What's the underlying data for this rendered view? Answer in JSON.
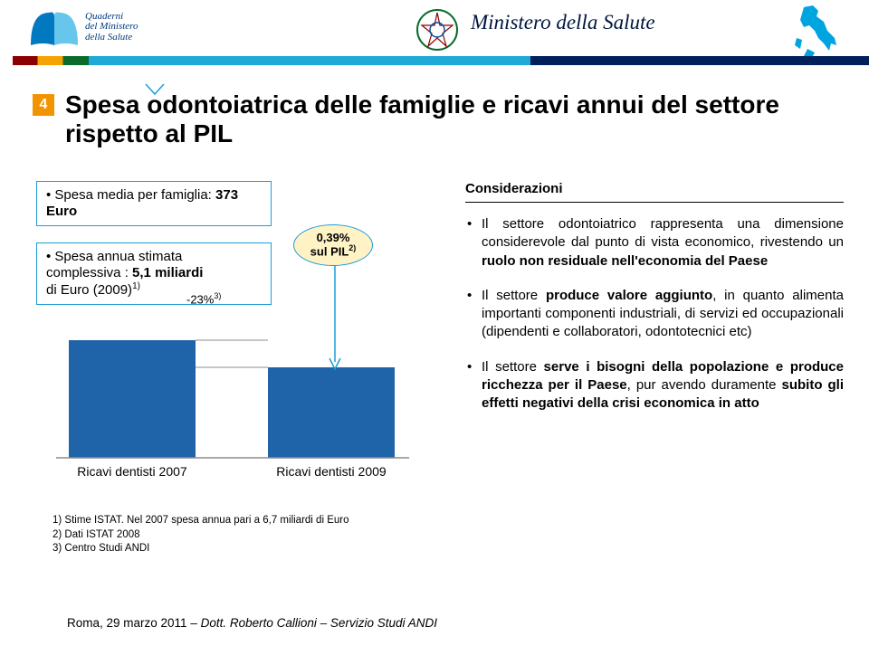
{
  "header": {
    "logo_left_lines": [
      "Quaderni",
      "del Ministero",
      "della Salute"
    ],
    "brand_text": "Ministero della Salute",
    "italy_fill": "#00a5e0"
  },
  "title": {
    "badge": "4",
    "text": "Spesa odontoiatrica delle famiglie e ricavi annui del settore rispetto al PIL"
  },
  "facts": {
    "box1_prefix": "• Spesa media per famiglia: ",
    "box1_value": "373 Euro",
    "box2_line1": "• Spesa annua stimata",
    "box2_line2_prefix": "complessiva : ",
    "box2_line2_value": "5,1 miliardi",
    "box2_line3": "di Euro (2009)",
    "box2_sup": "1)"
  },
  "chart": {
    "type": "bar",
    "categories": [
      "Ricavi dentisti 2007",
      "Ricavi dentisti 2009"
    ],
    "values": [
      100,
      77
    ],
    "bar_color": "#1f63a8",
    "axis_color": "#8c8c8c",
    "delta_label": "-23%",
    "delta_sup": "3)",
    "pct_label_line1": "0,39%",
    "pct_label_line2": "sul PIL",
    "pct_sup": "2)",
    "oval_border": "#1c9dd6",
    "oval_fill": "#fff3c6"
  },
  "footnotes": {
    "f1": "1) Stime ISTAT. Nel 2007 spesa annua pari a 6,7 miliardi di Euro",
    "f2": "2) Dati ISTAT 2008",
    "f3": "3) Centro Studi ANDI"
  },
  "considerations": {
    "title": "Considerazioni",
    "items": [
      "Il settore odontoiatrico rappresenta una dimensione considerevole dal punto di vista economico, rivestendo un <b>ruolo non residuale nell'economia del Paese</b>",
      "Il settore <b>produce valore aggiunto</b>, in quanto alimenta importanti componenti industriali, di servizi ed occupazionali (dipendenti e collaboratori, odontotecnici etc)",
      "Il settore <b>serve i bisogni della popolazione e produce ricchezza per il Paese</b>, pur avendo duramente <b>subito gli effetti negativi della crisi economica in atto</b>"
    ]
  },
  "footer": {
    "location_date": "Roma, 29 marzo 2011",
    "sep": " – ",
    "author_prefix": "Dott. ",
    "author": "Roberto Callioni",
    "author_suffix": " – Servizio Studi ANDI"
  },
  "colors": {
    "orange": "#f29400",
    "cyan": "#1ea9d6",
    "navy": "#00205b",
    "bar_blue": "#1f63a8"
  }
}
